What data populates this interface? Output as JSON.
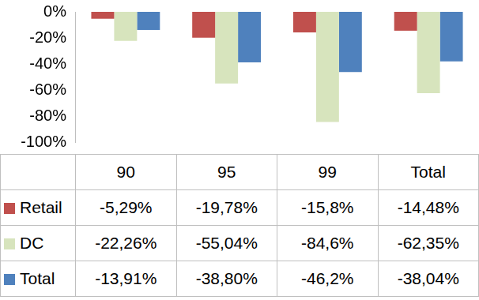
{
  "chart_data": {
    "type": "bar",
    "categories": [
      "90",
      "95",
      "99",
      "Total"
    ],
    "series": [
      {
        "name": "Retail",
        "color": "#c0504d",
        "values": [
          -5.29,
          -19.78,
          -15.8,
          -14.48
        ],
        "value_labels": [
          "-5,29%",
          "-19,78%",
          "-15,8%",
          "-14,48%"
        ]
      },
      {
        "name": "DC",
        "color": "#d7e4bd",
        "values": [
          -22.26,
          -55.04,
          -84.6,
          -62.35
        ],
        "value_labels": [
          "-22,26%",
          "-55,04%",
          "-84,6%",
          "-62,35%"
        ]
      },
      {
        "name": "Total",
        "color": "#4f81bd",
        "values": [
          -13.91,
          -38.8,
          -46.2,
          -38.04
        ],
        "value_labels": [
          "-13,91%",
          "-38,80%",
          "-46,2%",
          "-38,04%"
        ]
      }
    ],
    "ylim": [
      -100,
      0
    ],
    "yticks": [
      {
        "value": -100,
        "label": "-100%"
      },
      {
        "value": -80,
        "label": "-80%"
      },
      {
        "value": -60,
        "label": "-60%"
      },
      {
        "value": -40,
        "label": "-40%"
      },
      {
        "value": -20,
        "label": "-20%"
      },
      {
        "value": 0,
        "label": "0%"
      }
    ],
    "grid": false,
    "tick_labels": "y"
  }
}
